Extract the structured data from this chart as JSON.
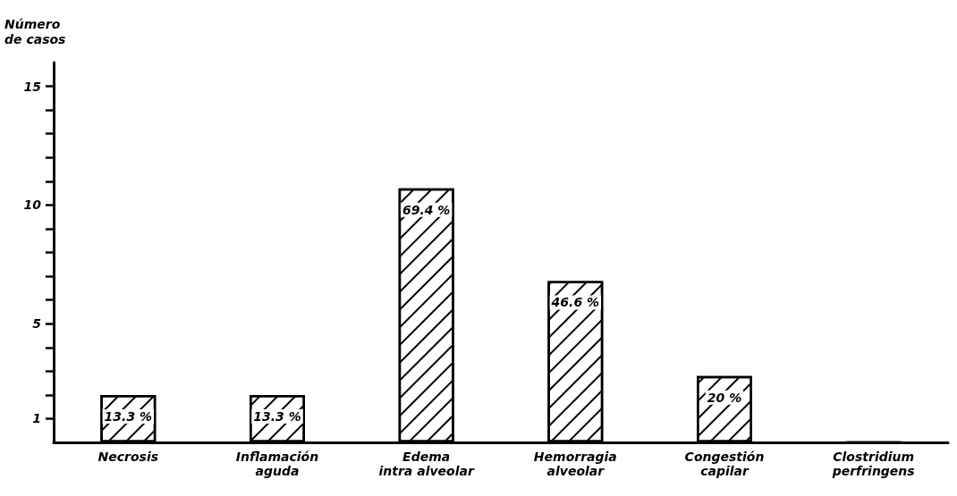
{
  "chart_data": {
    "type": "bar",
    "ylabel": "Número\nde casos",
    "categories": [
      "Necrosis",
      "Inflamación\naguda",
      "Edema\nintra alveolar",
      "Hemorragia\nalveolar",
      "Congestión\ncapilar",
      "Clostridium\nperfringens"
    ],
    "values": [
      2,
      2,
      10.7,
      6.8,
      2.8,
      0
    ],
    "annotations": [
      {
        "text": "13.3 %",
        "x": "Necrosis",
        "y": 2
      },
      {
        "text": "13.3 %",
        "x": "Inflamación\naguda",
        "y": 2
      },
      {
        "text": "69.4 %",
        "x": "Edema\nintra alveolar",
        "y": 10.7
      },
      {
        "text": "46.6 %",
        "x": "Hemorragia\nalveolar",
        "y": 6.8
      },
      {
        "text": "20 %",
        "x": "Congestión\ncapilar",
        "y": 2.8
      }
    ],
    "color": "#000000",
    "ylim": [
      0,
      16
    ],
    "yticks": [
      {
        "value": 1,
        "label": "1"
      },
      {
        "value": 2,
        "label": null
      },
      {
        "value": 3,
        "label": null
      },
      {
        "value": 4,
        "label": null
      },
      {
        "value": 5,
        "label": "5"
      },
      {
        "value": 6,
        "label": null
      },
      {
        "value": 7,
        "label": null
      },
      {
        "value": 8,
        "label": null
      },
      {
        "value": 9,
        "label": null
      },
      {
        "value": 10,
        "label": "10"
      },
      {
        "value": 11,
        "label": null
      },
      {
        "value": 12,
        "label": null
      },
      {
        "value": 13,
        "label": null
      },
      {
        "value": 14,
        "label": null
      },
      {
        "value": 15,
        "label": "15"
      }
    ],
    "grid": false
  }
}
